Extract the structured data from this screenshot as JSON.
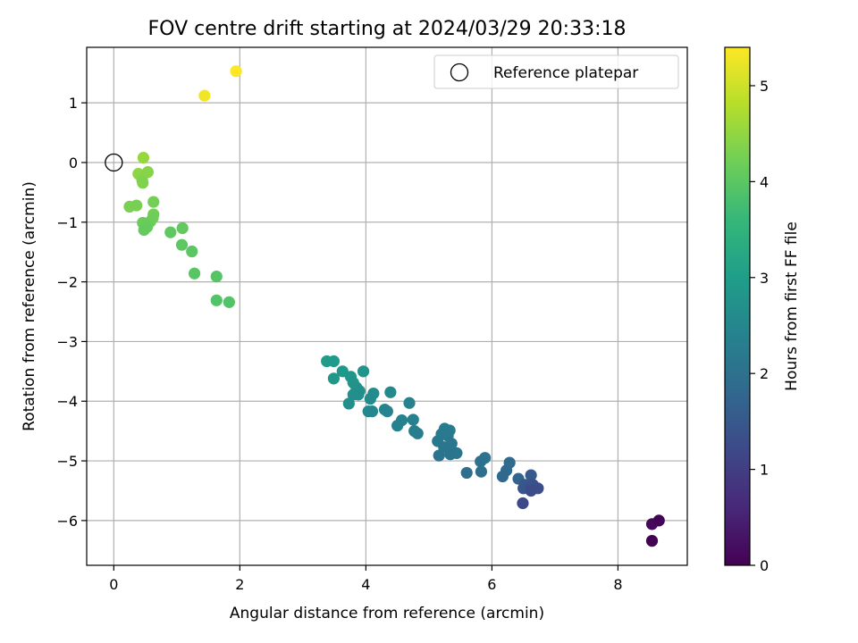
{
  "chart_data": {
    "type": "scatter",
    "title": "FOV centre drift starting at 2024/03/29 20:33:18",
    "xlabel": "Angular distance from reference (arcmin)",
    "ylabel": "Rotation from reference (arcmin)",
    "xlim": [
      -0.43,
      9.1
    ],
    "ylim": [
      -6.75,
      1.93
    ],
    "xticks": [
      0,
      2,
      4,
      6,
      8
    ],
    "yticks": [
      -6,
      -5,
      -4,
      -3,
      -2,
      -1,
      0,
      1
    ],
    "grid": true,
    "legend": {
      "placement": "top-right",
      "entries": [
        "Reference platepar"
      ]
    },
    "reference_point": {
      "x": 0,
      "y": 0
    },
    "colorbar": {
      "label": "Hours from first FF file",
      "range": [
        0,
        5.4
      ],
      "ticks": [
        0,
        1,
        2,
        3,
        4,
        5
      ],
      "colormap": "viridis"
    },
    "series": [
      {
        "points": [
          [
            1.94,
            1.53,
            5.4
          ],
          [
            1.44,
            1.12,
            5.3
          ],
          [
            0.47,
            0.08,
            4.55
          ],
          [
            0.39,
            -0.19,
            4.45
          ],
          [
            0.54,
            -0.16,
            4.42
          ],
          [
            0.45,
            -0.29,
            4.38
          ],
          [
            0.46,
            -0.34,
            4.35
          ],
          [
            0.25,
            -0.74,
            4.3
          ],
          [
            0.36,
            -0.72,
            4.28
          ],
          [
            0.63,
            -0.66,
            4.25
          ],
          [
            0.63,
            -0.87,
            4.22
          ],
          [
            0.62,
            -0.93,
            4.2
          ],
          [
            0.58,
            -0.99,
            4.18
          ],
          [
            0.46,
            -1.01,
            4.15
          ],
          [
            0.53,
            -1.08,
            4.12
          ],
          [
            0.48,
            -1.13,
            4.1
          ],
          [
            1.09,
            -1.1,
            4.08
          ],
          [
            0.9,
            -1.17,
            4.05
          ],
          [
            1.08,
            -1.38,
            4.02
          ],
          [
            1.24,
            -1.49,
            4.0
          ],
          [
            1.28,
            -1.86,
            3.97
          ],
          [
            1.63,
            -1.91,
            3.95
          ],
          [
            1.63,
            -2.31,
            3.92
          ],
          [
            1.83,
            -2.34,
            3.9
          ],
          [
            3.38,
            -3.33,
            2.95
          ],
          [
            3.49,
            -3.33,
            2.92
          ],
          [
            3.63,
            -3.5,
            2.88
          ],
          [
            3.49,
            -3.62,
            2.85
          ],
          [
            3.76,
            -3.59,
            2.83
          ],
          [
            3.96,
            -3.5,
            2.8
          ],
          [
            3.8,
            -3.69,
            2.78
          ],
          [
            3.85,
            -3.77,
            2.75
          ],
          [
            3.9,
            -3.83,
            2.72
          ],
          [
            3.8,
            -3.89,
            2.7
          ],
          [
            3.88,
            -3.89,
            2.68
          ],
          [
            3.73,
            -4.04,
            2.65
          ],
          [
            4.12,
            -3.87,
            2.62
          ],
          [
            4.07,
            -3.96,
            2.6
          ],
          [
            4.39,
            -3.85,
            2.55
          ],
          [
            4.04,
            -4.17,
            2.52
          ],
          [
            4.1,
            -4.17,
            2.5
          ],
          [
            4.3,
            -4.14,
            2.47
          ],
          [
            4.34,
            -4.17,
            2.45
          ],
          [
            4.69,
            -4.03,
            2.42
          ],
          [
            4.57,
            -4.32,
            2.4
          ],
          [
            4.5,
            -4.41,
            2.38
          ],
          [
            4.75,
            -4.31,
            2.35
          ],
          [
            4.77,
            -4.5,
            2.32
          ],
          [
            4.82,
            -4.54,
            2.3
          ],
          [
            5.25,
            -4.46,
            2.27
          ],
          [
            5.33,
            -4.49,
            2.25
          ],
          [
            5.2,
            -4.55,
            2.22
          ],
          [
            5.3,
            -4.58,
            2.2
          ],
          [
            5.14,
            -4.67,
            2.18
          ],
          [
            5.36,
            -4.71,
            2.15
          ],
          [
            5.24,
            -4.77,
            2.12
          ],
          [
            5.44,
            -4.87,
            2.1
          ],
          [
            5.34,
            -4.89,
            2.08
          ],
          [
            5.16,
            -4.91,
            2.05
          ],
          [
            5.89,
            -4.95,
            2.02
          ],
          [
            5.82,
            -5.01,
            2.0
          ],
          [
            5.6,
            -5.2,
            1.97
          ],
          [
            5.83,
            -5.18,
            1.95
          ],
          [
            6.28,
            -5.03,
            1.9
          ],
          [
            6.23,
            -5.16,
            1.85
          ],
          [
            6.17,
            -5.26,
            1.82
          ],
          [
            6.42,
            -5.3,
            1.72
          ],
          [
            6.62,
            -5.24,
            1.55
          ],
          [
            6.52,
            -5.4,
            1.5
          ],
          [
            6.5,
            -5.46,
            1.45
          ],
          [
            6.6,
            -5.45,
            1.4
          ],
          [
            6.65,
            -5.4,
            1.35
          ],
          [
            6.73,
            -5.46,
            1.3
          ],
          [
            6.62,
            -5.5,
            1.25
          ],
          [
            6.49,
            -5.71,
            1.2
          ],
          [
            8.54,
            -6.06,
            0.1
          ],
          [
            8.65,
            -6.0,
            0.05
          ],
          [
            8.54,
            -6.34,
            0.0
          ]
        ]
      }
    ]
  }
}
